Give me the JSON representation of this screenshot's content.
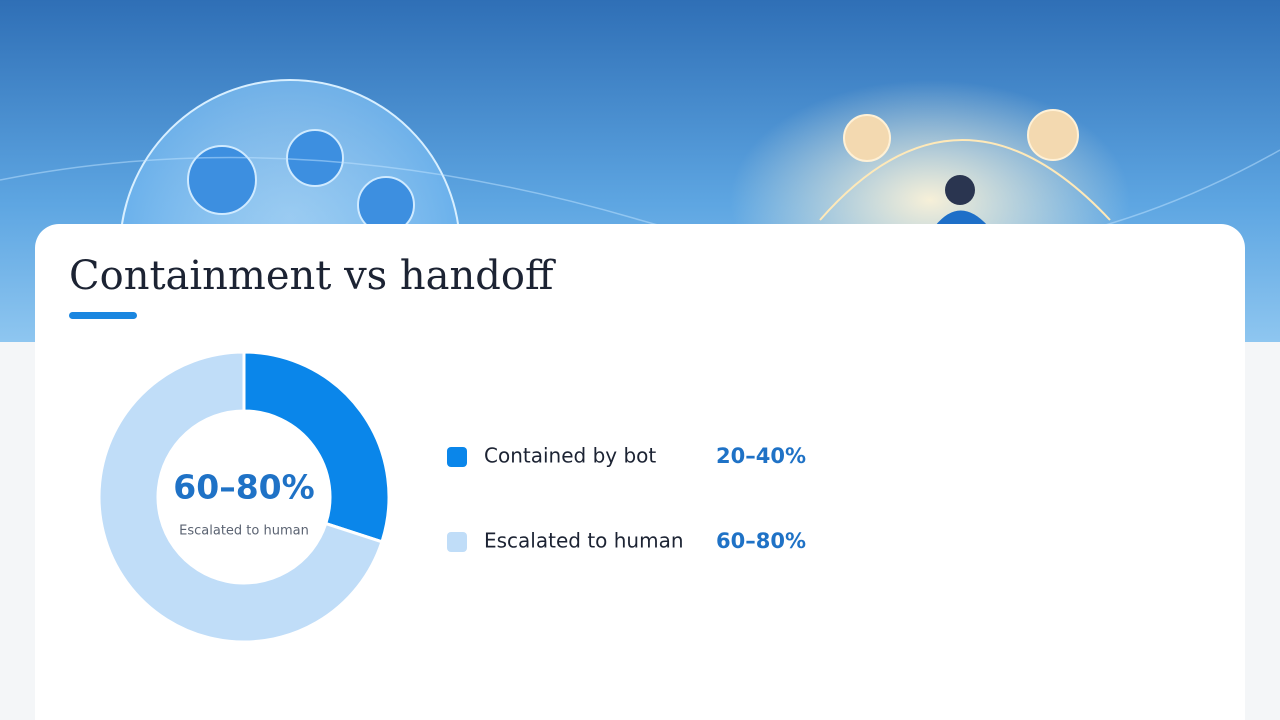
{
  "chart_data": {
    "type": "pie",
    "donut": true,
    "title": "Containment vs handoff",
    "categories": [
      "Contained by bot",
      "Escalated to human"
    ],
    "values": [
      30,
      70
    ],
    "value_labels": [
      "20–40%",
      "60–80%"
    ],
    "colors": [
      "#0a86ea",
      "#c0ddf8"
    ],
    "center_index": 1
  }
}
